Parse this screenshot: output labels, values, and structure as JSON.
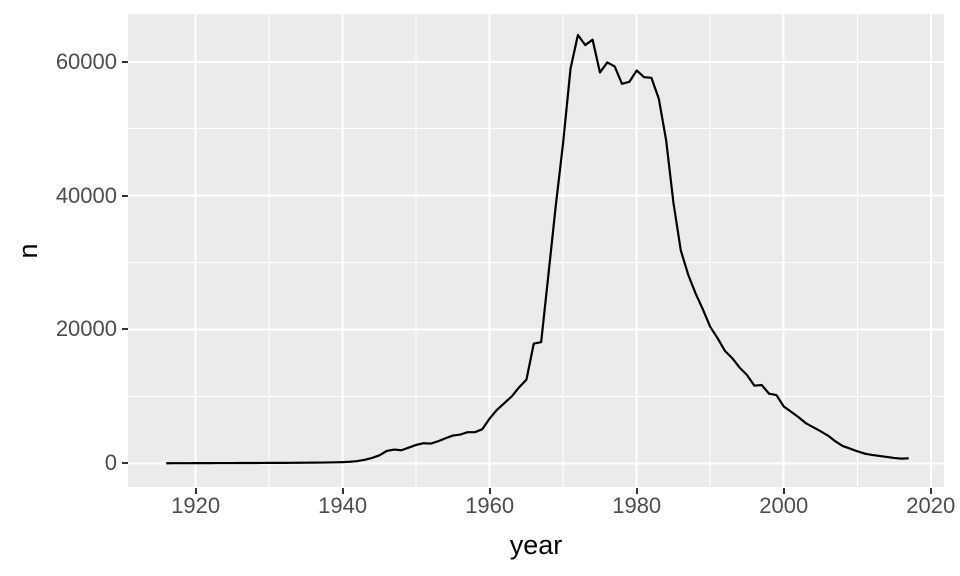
{
  "chart_data": {
    "type": "line",
    "title": "",
    "xlabel": "year",
    "ylabel": "n",
    "legend": "none",
    "grid": true,
    "xlim": [
      1910.8,
      2021.8
    ],
    "ylim": [
      -3540,
      67140
    ],
    "x_breaks": [
      1920,
      1940,
      1960,
      1980,
      2000,
      2020
    ],
    "x_tick_labels": [
      "1920",
      "1940",
      "1960",
      "1980",
      "2000",
      "2020"
    ],
    "x_minor_breaks": [
      1930,
      1950,
      1970,
      1990,
      2010
    ],
    "y_breaks": [
      0,
      20000,
      40000,
      60000
    ],
    "y_tick_labels": [
      "0",
      "20000",
      "40000",
      "60000"
    ],
    "y_minor_breaks": [
      10000,
      30000,
      50000
    ],
    "series": [
      {
        "name": "n",
        "x": [
          1916,
          1917,
          1918,
          1919,
          1920,
          1921,
          1922,
          1923,
          1924,
          1925,
          1926,
          1927,
          1928,
          1929,
          1930,
          1931,
          1932,
          1933,
          1934,
          1935,
          1936,
          1937,
          1938,
          1939,
          1940,
          1941,
          1942,
          1943,
          1944,
          1945,
          1946,
          1947,
          1948,
          1949,
          1950,
          1951,
          1952,
          1953,
          1954,
          1955,
          1956,
          1957,
          1958,
          1959,
          1960,
          1961,
          1962,
          1963,
          1964,
          1965,
          1966,
          1967,
          1968,
          1969,
          1970,
          1971,
          1972,
          1973,
          1974,
          1975,
          1976,
          1977,
          1978,
          1979,
          1980,
          1981,
          1982,
          1983,
          1984,
          1985,
          1986,
          1987,
          1988,
          1989,
          1990,
          1991,
          1992,
          1993,
          1994,
          1995,
          1996,
          1997,
          1998,
          1999,
          2000,
          2001,
          2002,
          2003,
          2004,
          2005,
          2006,
          2007,
          2008,
          2009,
          2010,
          2011,
          2012,
          2013,
          2014,
          2015,
          2016,
          2017
        ],
        "values": [
          10,
          15,
          20,
          20,
          25,
          30,
          30,
          35,
          40,
          40,
          45,
          50,
          50,
          55,
          60,
          65,
          70,
          75,
          85,
          95,
          105,
          115,
          130,
          150,
          180,
          230,
          330,
          520,
          800,
          1200,
          1850,
          2050,
          1950,
          2350,
          2750,
          3000,
          2950,
          3300,
          3750,
          4150,
          4300,
          4650,
          4650,
          5100,
          6700,
          8000,
          9000,
          10000,
          11350,
          12500,
          17900,
          18100,
          28300,
          38600,
          48000,
          59000,
          64000,
          62500,
          63300,
          58400,
          59900,
          59300,
          56700,
          57000,
          58700,
          57700,
          57600,
          54500,
          48300,
          38900,
          31800,
          28200,
          25400,
          23000,
          20400,
          18700,
          16800,
          15700,
          14300,
          13200,
          11600,
          11700,
          10400,
          10200,
          8500,
          7700,
          6900,
          6000,
          5400,
          4800,
          4150,
          3300,
          2600,
          2200,
          1800,
          1450,
          1250,
          1100,
          950,
          800,
          700,
          750
        ]
      }
    ],
    "colors": {
      "panel_background": "#EBEBEB",
      "grid_major": "#FFFFFF",
      "grid_minor": "#FFFFFF",
      "line": "#000000",
      "tick_text": "#4D4D4D",
      "axis_title": "#000000",
      "tick_mark": "#333333",
      "plot_background": "#FFFFFF"
    }
  }
}
